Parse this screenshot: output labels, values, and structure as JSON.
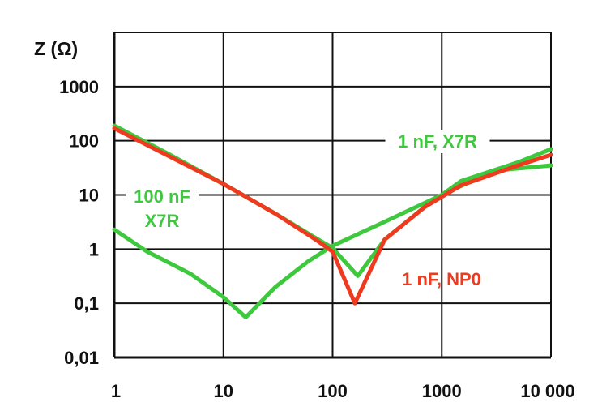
{
  "chart_data": {
    "type": "line",
    "ylabel": "Z  (Ω)",
    "xlabel": "",
    "x_scale": "log",
    "y_scale": "log",
    "xlim": [
      1,
      10000
    ],
    "ylim": [
      0.01,
      10000
    ],
    "grid": true,
    "x_ticks": [
      {
        "value": 1,
        "label": "1"
      },
      {
        "value": 10,
        "label": "10"
      },
      {
        "value": 100,
        "label": "100"
      },
      {
        "value": 1000,
        "label": "1000"
      },
      {
        "value": 10000,
        "label": "10 000"
      }
    ],
    "y_ticks": [
      {
        "value": 0.01,
        "label": "0,01"
      },
      {
        "value": 0.1,
        "label": "0,1"
      },
      {
        "value": 1,
        "label": "1"
      },
      {
        "value": 10,
        "label": "10"
      },
      {
        "value": 100,
        "label": "100"
      },
      {
        "value": 1000,
        "label": "1000"
      }
    ],
    "series": [
      {
        "name": "100 nF X7R",
        "label_lines": [
          "100 nF",
          "X7R"
        ],
        "color": "#3ec83e",
        "points": [
          [
            1,
            2.3
          ],
          [
            2,
            0.9
          ],
          [
            5,
            0.35
          ],
          [
            10,
            0.13
          ],
          [
            16,
            0.055
          ],
          [
            30,
            0.2
          ],
          [
            60,
            0.6
          ],
          [
            100,
            1.15
          ],
          [
            300,
            3.2
          ],
          [
            1000,
            10
          ],
          [
            3000,
            28
          ],
          [
            10000,
            35
          ]
        ]
      },
      {
        "name": "1 nF, X7R",
        "label_lines": [
          "1 nF, X7R"
        ],
        "color": "#3ec83e",
        "points": [
          [
            1,
            190
          ],
          [
            3,
            60
          ],
          [
            10,
            16
          ],
          [
            30,
            4.5
          ],
          [
            70,
            1.6
          ],
          [
            100,
            1.05
          ],
          [
            170,
            0.32
          ],
          [
            300,
            1.5
          ],
          [
            700,
            6
          ],
          [
            1500,
            18
          ],
          [
            5000,
            40
          ],
          [
            10000,
            70
          ]
        ]
      },
      {
        "name": "1 nF, NP0",
        "label_lines": [
          "1 nF, NP0"
        ],
        "color": "#ee3a1e",
        "points": [
          [
            1,
            170
          ],
          [
            3,
            55
          ],
          [
            10,
            16
          ],
          [
            30,
            4.5
          ],
          [
            70,
            1.5
          ],
          [
            100,
            0.9
          ],
          [
            160,
            0.1
          ],
          [
            300,
            1.5
          ],
          [
            700,
            6
          ],
          [
            1500,
            15
          ],
          [
            5000,
            35
          ],
          [
            10000,
            55
          ]
        ]
      }
    ]
  }
}
